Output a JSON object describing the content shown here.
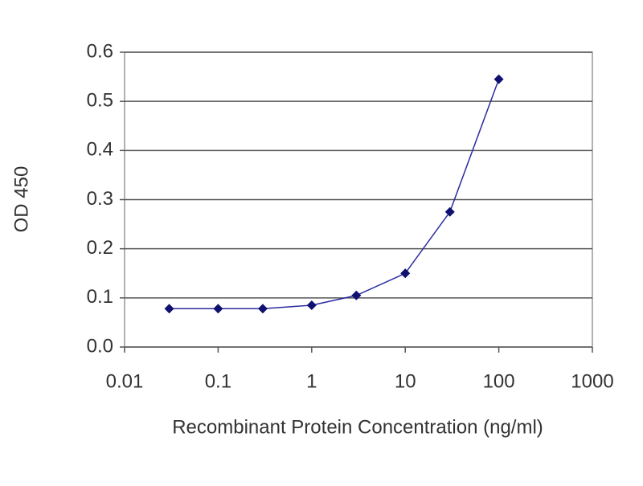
{
  "chart_data": {
    "type": "scatter-line",
    "x_label": "Recombinant Protein Concentration (ng/ml)",
    "y_label": "OD 450",
    "x": [
      0.03,
      0.1,
      0.3,
      1,
      3,
      10,
      30,
      100
    ],
    "series": [
      {
        "name": "OD 450",
        "color": "#2a2aa0",
        "marker_color": "#101070",
        "values": [
          0.078,
          0.078,
          0.078,
          0.085,
          0.105,
          0.15,
          0.275,
          0.545
        ]
      }
    ],
    "x_scale": "log",
    "xlim": [
      0.01,
      1000
    ],
    "xticks": [
      0.01,
      0.1,
      1,
      10,
      100,
      1000
    ],
    "ylim": [
      0,
      0.6
    ],
    "yticks": [
      {
        "value": 0,
        "label": "0.0"
      },
      0.1,
      0.2,
      0.3,
      0.4,
      0.5,
      0.6
    ],
    "grid": true
  }
}
